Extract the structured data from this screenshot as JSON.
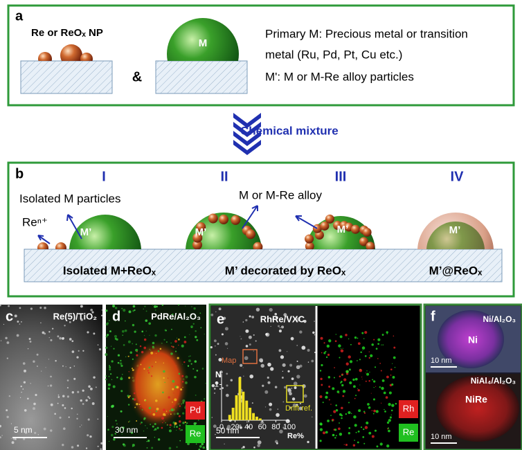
{
  "panel_a": {
    "label": "a",
    "np_label": "Re or ReOₓ NP",
    "sphere_label": "M",
    "ampersand": "&",
    "lines": [
      "Primary M: Precious metal or transition",
      "metal (Ru, Pd, Pt, Cu etc.)",
      "M': M or M-Re alloy particles"
    ]
  },
  "arrow_label": "Chemical mixture",
  "panel_b": {
    "label": "b",
    "stages": [
      "I",
      "II",
      "III",
      "IV"
    ],
    "isolated_particles": "Isolated M particles",
    "ion": "Reⁿ⁺",
    "alloy": "M or M-Re alloy",
    "sphere_labels": [
      "M’",
      "M’",
      "M’",
      "M’"
    ],
    "bottom": [
      "Isolated M+ReOₓ",
      "M’ decorated by ReOₓ",
      "M’@ReOₓ"
    ]
  },
  "panel_c": {
    "label": "c",
    "sample": "Re(5)/TiO₂",
    "scale": "5 nm"
  },
  "panel_d": {
    "label": "d",
    "sample": "PdRe/Al₂O₃",
    "scale": "30 nm",
    "legend": [
      "Pd",
      "Re"
    ]
  },
  "panel_e": {
    "label": "e",
    "sample": "RhRe/VXC",
    "map": "Map",
    "drift": "Drift ref.",
    "scale": "50 nm",
    "legend": [
      "Rh",
      "Re"
    ],
    "histogram": {
      "ylabel": "N",
      "xlabel": "Re%",
      "ylim": [
        0,
        1.3
      ],
      "yticks": [
        1
      ],
      "xlim": [
        0,
        100
      ],
      "xticks": [
        0,
        20,
        40,
        60,
        80,
        100
      ],
      "bins": [
        10,
        15,
        20,
        25,
        30,
        35,
        40,
        45,
        50,
        55,
        60
      ],
      "counts": [
        0.15,
        0.35,
        0.7,
        1.2,
        0.8,
        0.55,
        0.35,
        0.2,
        0.1,
        0.05
      ]
    }
  },
  "panel_f": {
    "label": "f",
    "top_sample": "Ni/Al₂O₃",
    "top_particle": "Ni",
    "top_scale": "10 nm",
    "bottom_sample": "NiAl₄/Al₂O₃",
    "bottom_particle": "NiRe",
    "bottom_scale": "10 nm"
  }
}
